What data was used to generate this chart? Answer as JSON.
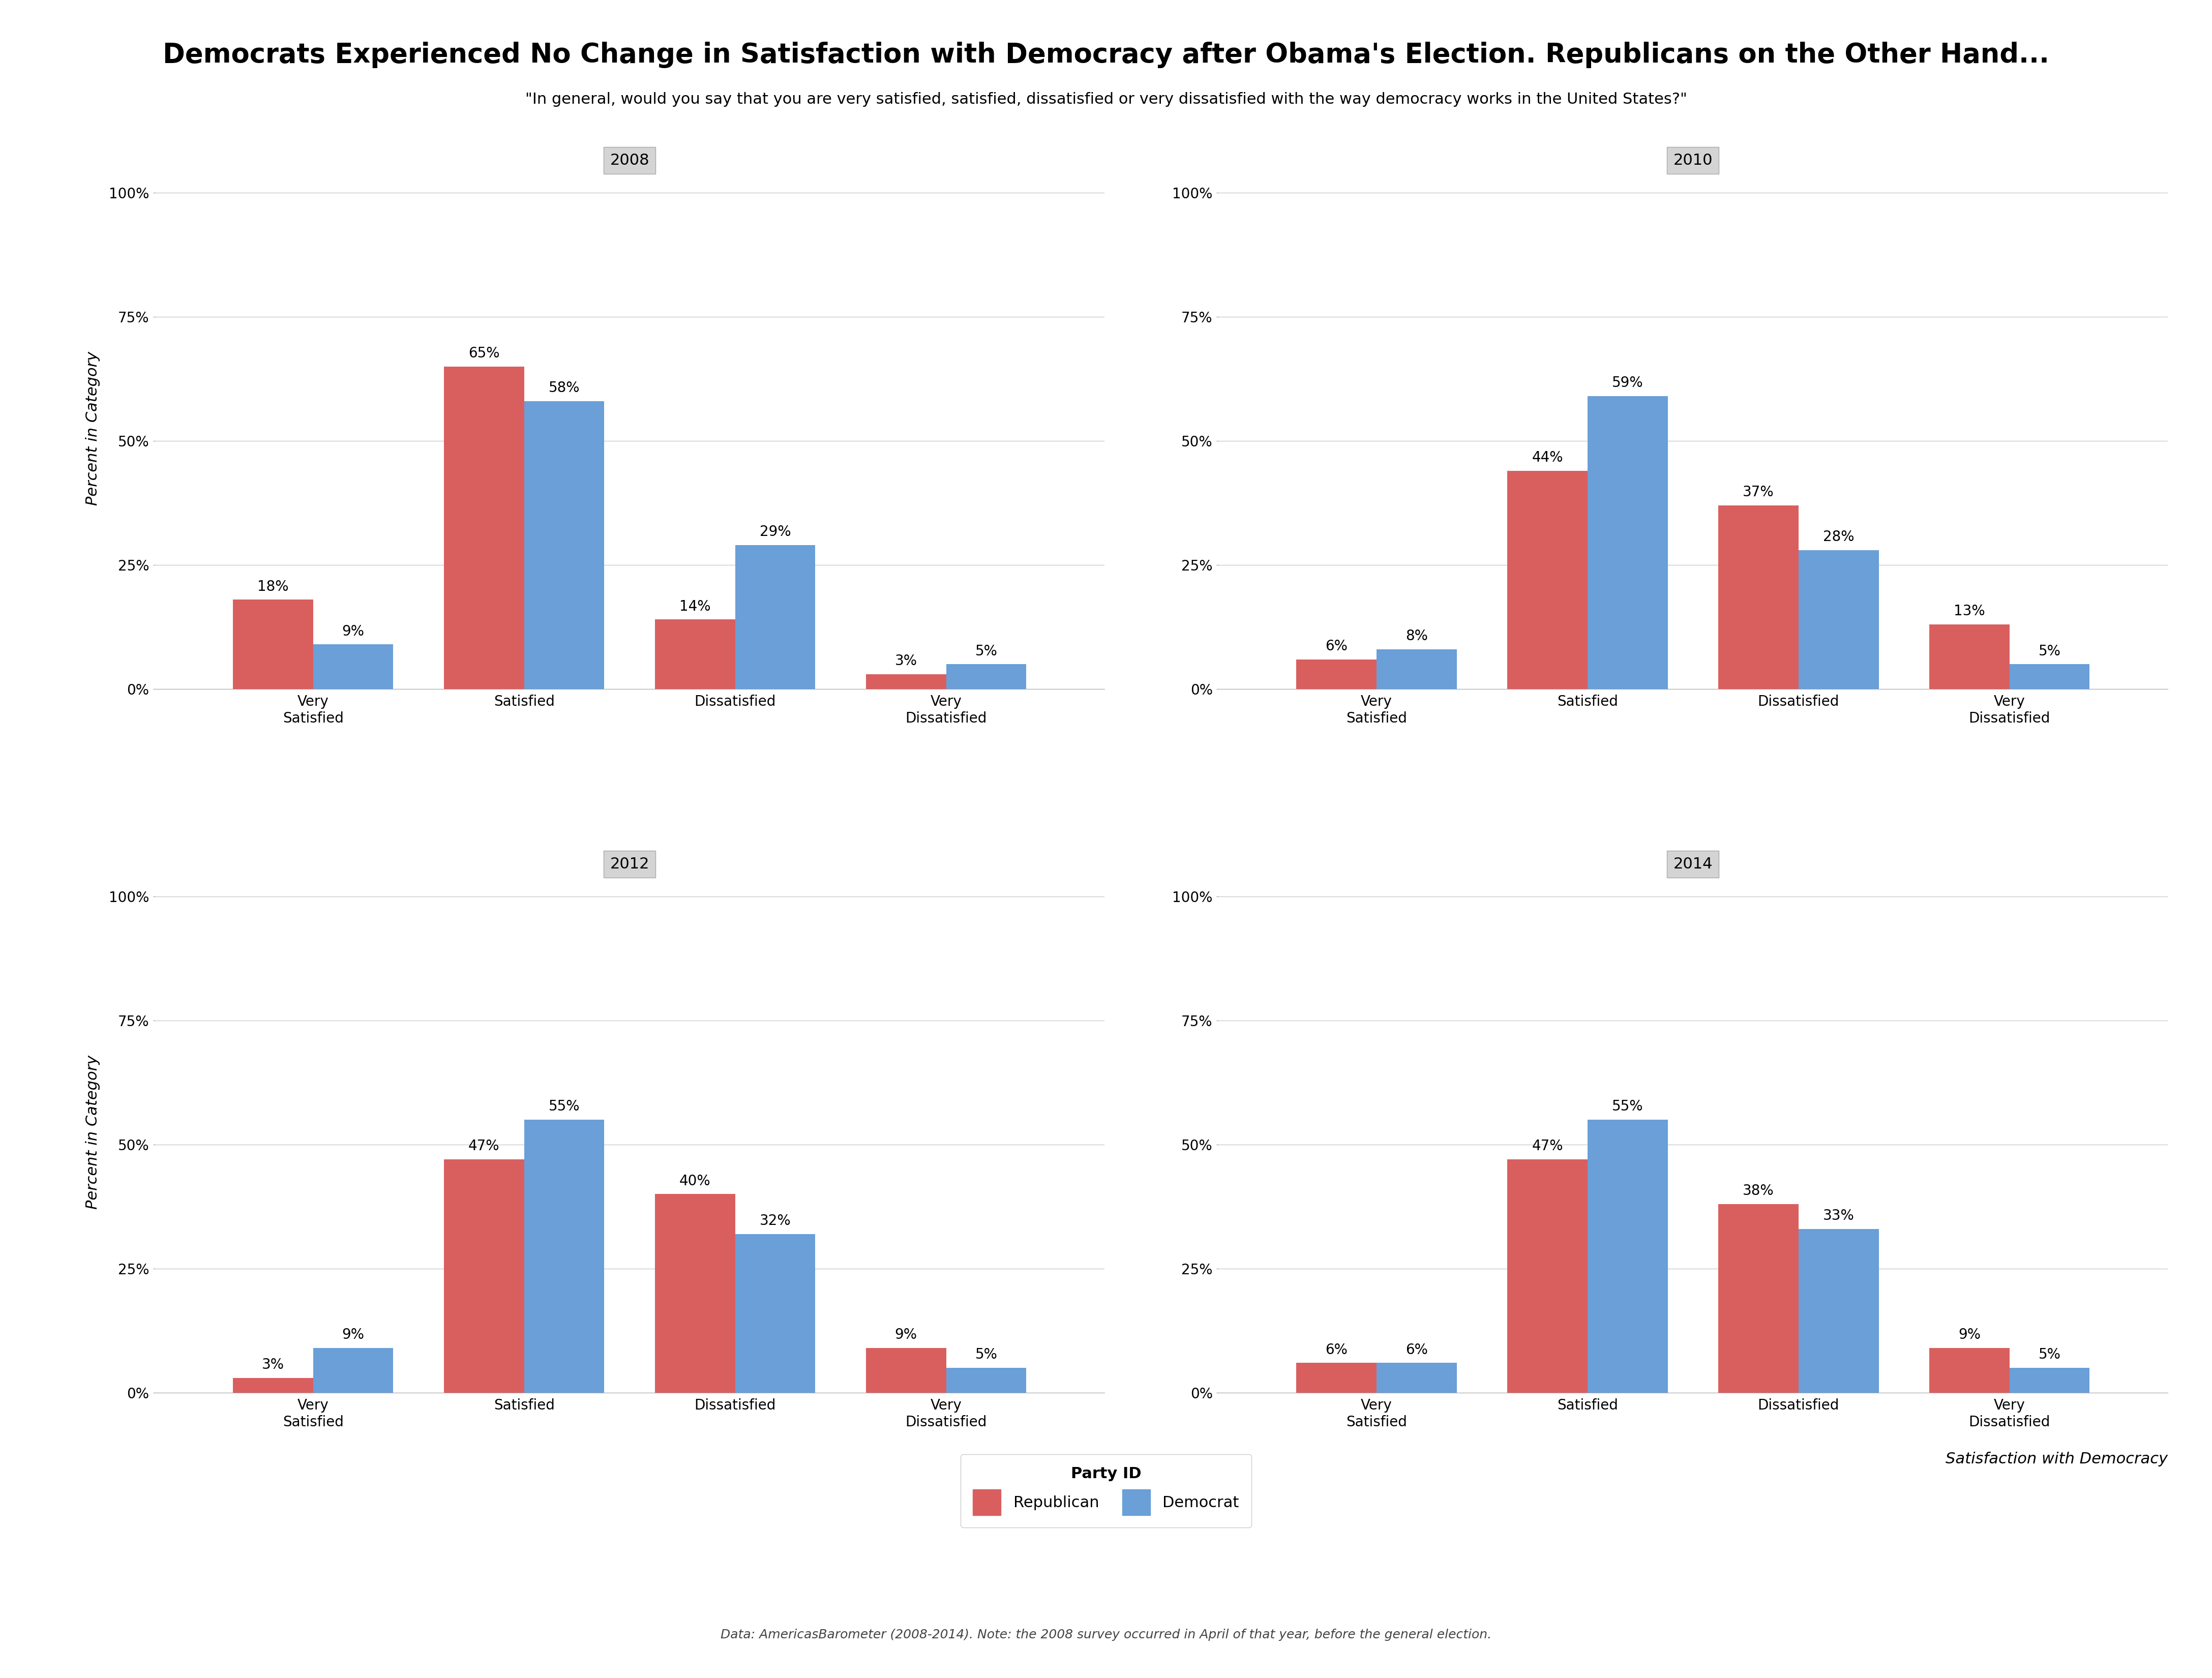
{
  "title": "Democrats Experienced No Change in Satisfaction with Democracy after Obama's Election. Republicans on the Other Hand...",
  "subtitle": "\"In general, would you say that you are very satisfied, satisfied, dissatisfied or very dissatisfied with the way democracy works in the United States?\"",
  "years": [
    "2008",
    "2010",
    "2012",
    "2014"
  ],
  "categories": [
    "Very\nSatisfied",
    "Satisfied",
    "Dissatisfied",
    "Very\nDissatisfied"
  ],
  "republican_color": "#d95f5f",
  "democrat_color": "#6a9fd8",
  "data": {
    "2008": {
      "Republican": [
        18,
        65,
        14,
        3
      ],
      "Democrat": [
        9,
        58,
        29,
        5
      ]
    },
    "2010": {
      "Republican": [
        6,
        44,
        37,
        13
      ],
      "Democrat": [
        8,
        59,
        28,
        5
      ]
    },
    "2012": {
      "Republican": [
        3,
        47,
        40,
        9
      ],
      "Democrat": [
        9,
        55,
        32,
        5
      ]
    },
    "2014": {
      "Republican": [
        6,
        47,
        38,
        9
      ],
      "Democrat": [
        6,
        55,
        33,
        5
      ]
    }
  },
  "ylabel": "Percent in Category",
  "xlabel": "Satisfaction with Democracy",
  "footnote": "Data: AmericasBarometer (2008-2014). Note: the 2008 survey occurred in April of that year, before the general election.",
  "legend_title": "Party ID",
  "background_color": "#ffffff",
  "strip_color": "#d4d4d4",
  "strip_edge_color": "#aaaaaa",
  "grid_color": "#cccccc",
  "ylim": [
    0,
    105
  ],
  "yticks": [
    0,
    25,
    50,
    75,
    100
  ],
  "bar_width": 0.38,
  "title_fontsize": 38,
  "subtitle_fontsize": 22,
  "strip_fontsize": 22,
  "ylabel_fontsize": 22,
  "xlabel_fontsize": 22,
  "tick_fontsize": 20,
  "bar_label_fontsize": 20,
  "legend_fontsize": 22,
  "footnote_fontsize": 18
}
